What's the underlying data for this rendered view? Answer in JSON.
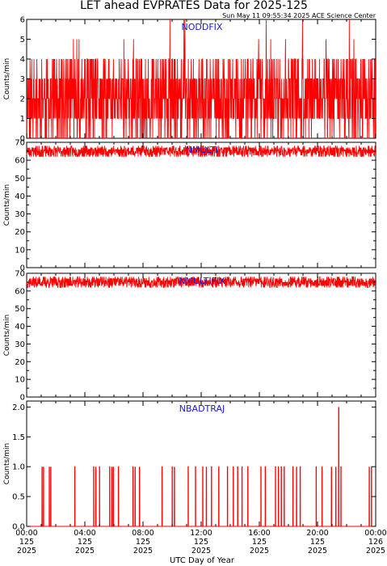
{
  "header": {
    "title": "LET ahead EVPRATES Data for 2025-125",
    "subtitle": "Sun May 11 09:55:34 2025 ACE Science Center"
  },
  "colors": {
    "trace": "#ff0000",
    "panel_label": "#1a1ad0",
    "axes": "#000000"
  },
  "xlabel": "UTC Day of Year",
  "x_ticks": [
    {
      "time": "00:00",
      "doy": "125",
      "year": "2025"
    },
    {
      "time": "04:00",
      "doy": "125",
      "year": "2025"
    },
    {
      "time": "08:00",
      "doy": "125",
      "year": "2025"
    },
    {
      "time": "12:00",
      "doy": "125",
      "year": "2025"
    },
    {
      "time": "16:00",
      "doy": "125",
      "year": "2025"
    },
    {
      "time": "20:00",
      "doy": "125",
      "year": "2025"
    },
    {
      "time": "00:00",
      "doy": "126",
      "year": "2025"
    }
  ],
  "chart_data": [
    {
      "type": "line",
      "label": "NODDFIX",
      "ylabel": "Counts/min",
      "ylim": [
        0,
        6
      ],
      "yticks": [
        0,
        1,
        2,
        3,
        4,
        5,
        6
      ],
      "xlim_hours": [
        0,
        24
      ],
      "baseline": 2,
      "noise": 2,
      "spike": 6,
      "spike_prob": 0.015,
      "seed": 11,
      "description_values": "per-minute counts fluctuating mostly between 0 and 4, occasional spikes to 5-6"
    },
    {
      "type": "line",
      "label": "NMULTI",
      "ylabel": "Counts/min",
      "ylim": [
        0,
        70
      ],
      "yticks": [
        0,
        5,
        10,
        15,
        20,
        25,
        30,
        35,
        40,
        45,
        50,
        55,
        60,
        65,
        70
      ],
      "ytick_labels": [
        0,
        10,
        20,
        30,
        40,
        50,
        60,
        70
      ],
      "xlim_hours": [
        0,
        24
      ],
      "baseline": 65,
      "noise": 3,
      "seed": 23
    },
    {
      "type": "line",
      "label": "NMULTIFIX",
      "ylabel": "Counts/min",
      "ylim": [
        0,
        70
      ],
      "yticks": [
        0,
        5,
        10,
        15,
        20,
        25,
        30,
        35,
        40,
        45,
        50,
        55,
        60,
        65,
        70
      ],
      "ytick_labels": [
        0,
        10,
        20,
        30,
        40,
        50,
        60,
        70
      ],
      "xlim_hours": [
        0,
        24
      ],
      "baseline": 65,
      "noise": 3,
      "seed": 37
    },
    {
      "type": "line",
      "label": "NBADTRAJ",
      "ylabel": "Counts/min",
      "ylim": [
        0,
        2.1
      ],
      "yticks": [
        0.0,
        0.5,
        1.0,
        1.5,
        2.0
      ],
      "ytick_labels": [
        "0.0",
        "0.5",
        "1.0",
        "1.5",
        "2.0"
      ],
      "xlim_hours": [
        0,
        24
      ],
      "baseline": 0,
      "events": [
        {
          "hour": 1.05,
          "value": 1
        },
        {
          "hour": 1.15,
          "value": 1
        },
        {
          "hour": 1.55,
          "value": 1
        },
        {
          "hour": 1.65,
          "value": 1
        },
        {
          "hour": 3.3,
          "value": 1
        },
        {
          "hour": 4.6,
          "value": 1
        },
        {
          "hour": 4.75,
          "value": 1
        },
        {
          "hour": 5.0,
          "value": 1
        },
        {
          "hour": 5.7,
          "value": 1
        },
        {
          "hour": 5.85,
          "value": 1
        },
        {
          "hour": 5.95,
          "value": 1
        },
        {
          "hour": 6.3,
          "value": 1
        },
        {
          "hour": 7.3,
          "value": 1
        },
        {
          "hour": 7.45,
          "value": 1
        },
        {
          "hour": 7.75,
          "value": 1
        },
        {
          "hour": 9.3,
          "value": 1
        },
        {
          "hour": 10.0,
          "value": 1
        },
        {
          "hour": 10.15,
          "value": 1
        },
        {
          "hour": 11.1,
          "value": 1
        },
        {
          "hour": 11.6,
          "value": 1
        },
        {
          "hour": 12.1,
          "value": 1
        },
        {
          "hour": 12.35,
          "value": 1
        },
        {
          "hour": 12.7,
          "value": 1
        },
        {
          "hour": 13.2,
          "value": 1
        },
        {
          "hour": 13.8,
          "value": 1
        },
        {
          "hour": 14.2,
          "value": 1
        },
        {
          "hour": 14.5,
          "value": 1
        },
        {
          "hour": 14.8,
          "value": 1
        },
        {
          "hour": 15.2,
          "value": 1
        },
        {
          "hour": 16.1,
          "value": 1
        },
        {
          "hour": 16.4,
          "value": 1
        },
        {
          "hour": 17.1,
          "value": 1
        },
        {
          "hour": 17.3,
          "value": 1
        },
        {
          "hour": 17.5,
          "value": 1
        },
        {
          "hour": 17.7,
          "value": 1
        },
        {
          "hour": 18.3,
          "value": 1
        },
        {
          "hour": 18.55,
          "value": 1
        },
        {
          "hour": 18.8,
          "value": 1
        },
        {
          "hour": 19.9,
          "value": 1
        },
        {
          "hour": 20.3,
          "value": 1
        },
        {
          "hour": 20.95,
          "value": 1
        },
        {
          "hour": 21.25,
          "value": 1
        },
        {
          "hour": 21.45,
          "value": 2
        },
        {
          "hour": 21.6,
          "value": 1
        },
        {
          "hour": 23.55,
          "value": 1
        },
        {
          "hour": 23.7,
          "value": 1
        }
      ]
    }
  ]
}
